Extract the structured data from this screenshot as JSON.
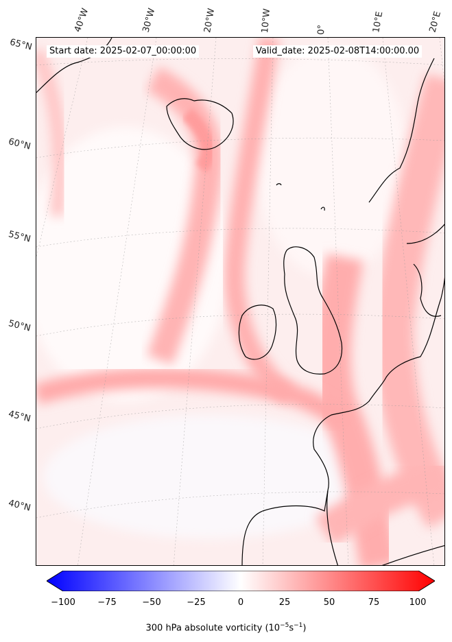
{
  "map": {
    "start_date": "Start date: 2025-02-07_00:00:00",
    "valid_date": "Valid_date: 2025-02-08T14:00:00.00",
    "lon_labels": [
      "40°W",
      "30°W",
      "20°W",
      "10°W",
      "0°",
      "10°E",
      "20°E"
    ],
    "lat_labels": [
      "65°N",
      "60°N",
      "55°N",
      "50°N",
      "45°N",
      "40°N"
    ],
    "field": "300 hPa absolute vorticity",
    "colormap": "bwr",
    "range": [
      -100,
      100
    ]
  },
  "colorbar": {
    "ticks": [
      "−100",
      "−75",
      "−50",
      "−25",
      "0",
      "25",
      "50",
      "75",
      "100"
    ],
    "label_prefix": "300 hPa absolute vorticity (10",
    "label_exp1": "−5",
    "label_mid": "s",
    "label_exp2": "−1",
    "label_suffix": ")",
    "colors": {
      "low": "#0000ff",
      "mid": "#ffffff",
      "high": "#ff0000"
    }
  }
}
